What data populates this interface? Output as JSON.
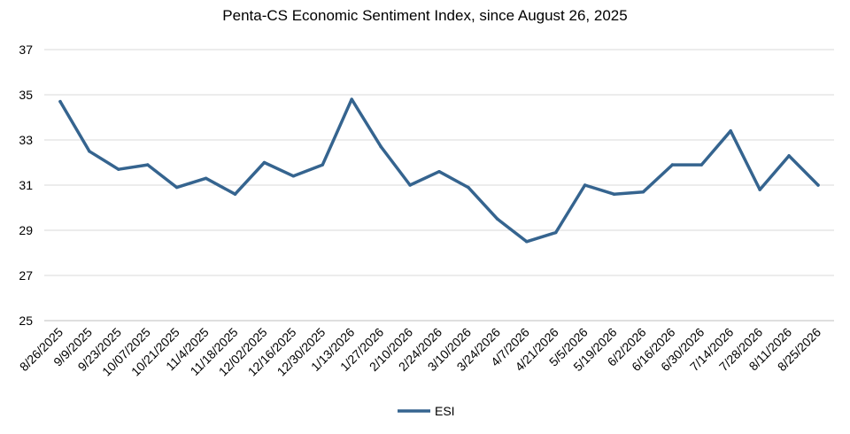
{
  "chart_data": {
    "type": "line",
    "title": "Penta-CS Economic Sentiment Index, since August 26, 2025",
    "xlabel": "",
    "ylabel": "",
    "ylim": [
      25,
      37
    ],
    "yticks": [
      25,
      27,
      29,
      31,
      33,
      35,
      37
    ],
    "grid": true,
    "legend_position": "bottom",
    "categories": [
      "8/26/2025",
      "9/9/2025",
      "9/23/2025",
      "10/07/2025",
      "10/21/2025",
      "11/4/2025",
      "11/18/2025",
      "12/02/2025",
      "12/16/2025",
      "12/30/2025",
      "1/13/2026",
      "1/27/2026",
      "2/10/2026",
      "2/24/2026",
      "3/10/2026",
      "3/24/2026",
      "4/7/2026",
      "4/21/2026",
      "5/5/2026",
      "5/19/2026",
      "6/2/2026",
      "6/16/2026",
      "6/30/2026",
      "7/14/2026",
      "7/28/2026",
      "8/11/2026",
      "8/25/2026"
    ],
    "series": [
      {
        "name": "ESI",
        "color": "#35648F",
        "values": [
          34.7,
          32.5,
          31.7,
          31.9,
          30.9,
          31.3,
          30.6,
          32.0,
          31.4,
          31.9,
          34.8,
          32.7,
          31.0,
          31.6,
          30.9,
          29.5,
          28.5,
          28.9,
          31.0,
          30.6,
          30.7,
          31.9,
          31.9,
          33.4,
          30.8,
          32.3,
          31.0
        ]
      }
    ]
  }
}
